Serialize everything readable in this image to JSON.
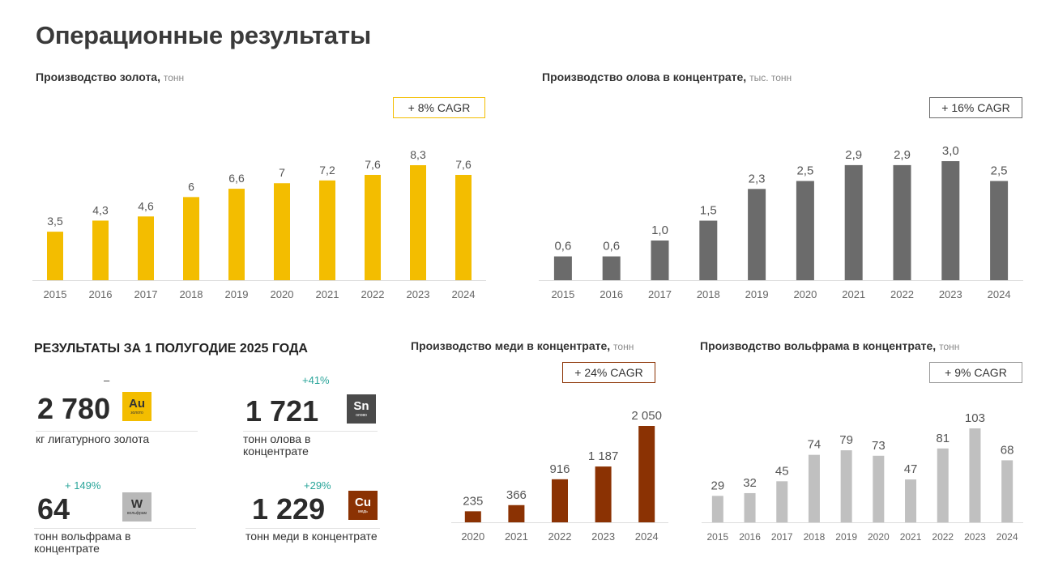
{
  "page_title": "Операционные результаты",
  "results": {
    "title": "РЕЗУЛЬТАТЫ ЗА 1 ПОЛУГОДИЕ 2025 ГОДА",
    "kpis": [
      {
        "value": "2 780",
        "change": "–",
        "label": "кг лигатурного золота",
        "symbol": "Au",
        "element": "золото",
        "tile_color": "#f3bd00",
        "tile_text": "#333333"
      },
      {
        "value": "1 721",
        "change": "+41%",
        "label": "тонн олова в концентрате",
        "symbol": "Sn",
        "element": "олово",
        "tile_color": "#4a4a4a",
        "tile_text": "#ffffff"
      },
      {
        "value": "64",
        "change": "+ 149%",
        "label": "тонн вольфрама в концентрате",
        "symbol": "W",
        "element": "вольфрам",
        "tile_color": "#b8b8b8",
        "tile_text": "#333333"
      },
      {
        "value": "1 229",
        "change": "+29%",
        "label": "тонн меди в концентрате",
        "symbol": "Cu",
        "element": "медь",
        "tile_color": "#8b3203",
        "tile_text": "#ffffff"
      }
    ]
  },
  "chart_data": [
    {
      "type": "bar",
      "title": "Производство золота,",
      "unit": "тонн",
      "cagr": "+ 8% CAGR",
      "color": "#f3bd00",
      "border_color": "#f3bd00",
      "categories": [
        "2015",
        "2016",
        "2017",
        "2018",
        "2019",
        "2020",
        "2021",
        "2022",
        "2023",
        "2024"
      ],
      "values": [
        3.5,
        4.3,
        4.6,
        6,
        6.6,
        7,
        7.2,
        7.6,
        8.3,
        7.6
      ],
      "labels": [
        "3,5",
        "4,3",
        "4,6",
        "6",
        "6,6",
        "7",
        "7,2",
        "7,6",
        "8,3",
        "7,6"
      ],
      "ylim": [
        0,
        8.3
      ]
    },
    {
      "type": "bar",
      "title": "Производство олова в концентрате,",
      "unit": "тыс. тонн",
      "cagr": "+ 16% CAGR",
      "color": "#6b6b6b",
      "border_color": "#6b6b6b",
      "categories": [
        "2015",
        "2016",
        "2017",
        "2018",
        "2019",
        "2020",
        "2021",
        "2022",
        "2023",
        "2024"
      ],
      "values": [
        0.6,
        0.6,
        1.0,
        1.5,
        2.3,
        2.5,
        2.9,
        2.9,
        3.0,
        2.5
      ],
      "labels": [
        "0,6",
        "0,6",
        "1,0",
        "1,5",
        "2,3",
        "2,5",
        "2,9",
        "2,9",
        "3,0",
        "2,5"
      ],
      "ylim": [
        0,
        3.0
      ]
    },
    {
      "type": "bar",
      "title": "Производство меди в концентрате,",
      "unit": "тонн",
      "cagr": "+ 24% CAGR",
      "color": "#8b3203",
      "border_color": "#8b3203",
      "categories": [
        "2020",
        "2021",
        "2022",
        "2023",
        "2024"
      ],
      "values": [
        235,
        366,
        916,
        1187,
        2050
      ],
      "labels": [
        "235",
        "366",
        "916",
        "1 187",
        "2 050"
      ],
      "ylim": [
        0,
        2050
      ]
    },
    {
      "type": "bar",
      "title": "Производство вольфрама в концентрате,",
      "unit": "тонн",
      "cagr": "+ 9% CAGR",
      "color": "#c0c0c0",
      "border_color": "#9a9a9a",
      "categories": [
        "2015",
        "2016",
        "2017",
        "2018",
        "2019",
        "2020",
        "2021",
        "2022",
        "2023",
        "2024"
      ],
      "values": [
        29,
        32,
        45,
        74,
        79,
        73,
        47,
        81,
        103,
        68
      ],
      "labels": [
        "29",
        "32",
        "45",
        "74",
        "79",
        "73",
        "47",
        "81",
        "103",
        "68"
      ],
      "ylim": [
        0,
        103
      ]
    }
  ]
}
